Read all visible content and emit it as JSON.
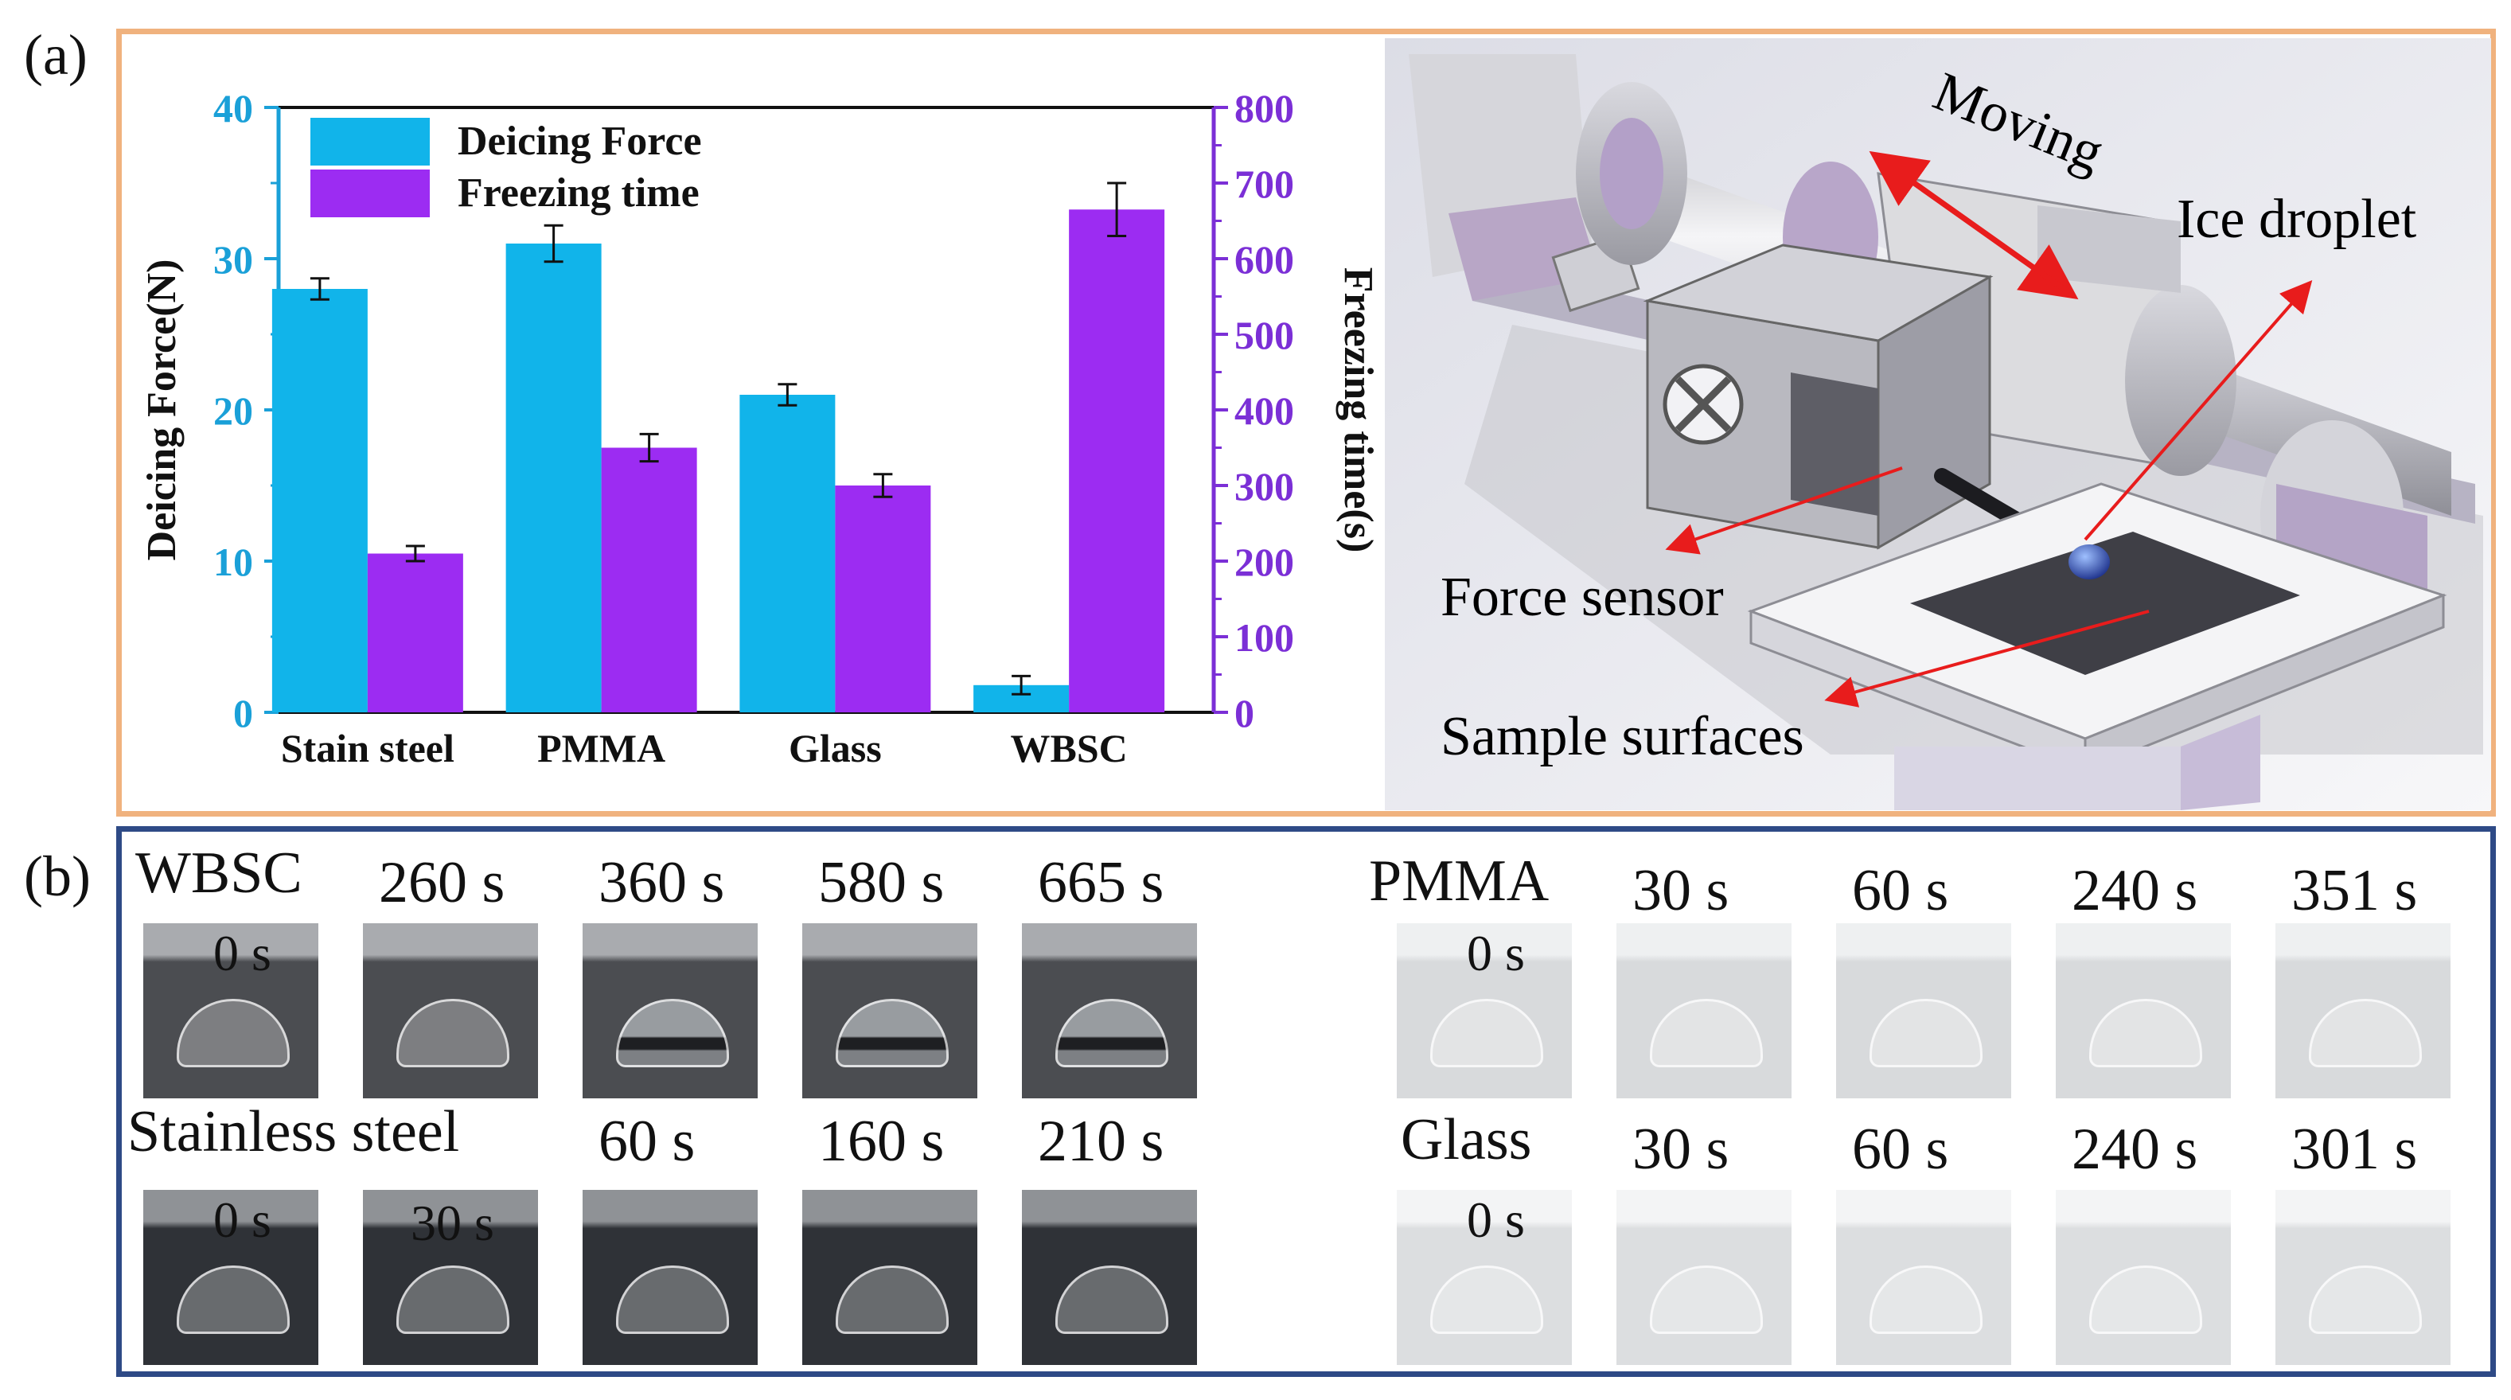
{
  "panel_a": {
    "label": "(a)",
    "chart_data": {
      "type": "bar",
      "categories": [
        "Stain steel",
        "PMMA",
        "Glass",
        "WBSC"
      ],
      "series": [
        {
          "name": "Deicing Force",
          "axis": "left",
          "color": "#11b4ea",
          "values": [
            28,
            31,
            21,
            1.8
          ],
          "errors": [
            0.7,
            1.2,
            0.7,
            0.6
          ]
        },
        {
          "name": "Freezing time",
          "axis": "right",
          "color": "#9c2cf2",
          "values": [
            210,
            350,
            300,
            665
          ],
          "errors": [
            10,
            18,
            15,
            35
          ]
        }
      ],
      "ylabel_left": "Deicing Force(N)",
      "ylabel_right": "Freezing time(s)",
      "ylim_left": [
        0,
        40
      ],
      "ylim_right": [
        0,
        800
      ],
      "yticks_left": [
        0,
        10,
        20,
        30,
        40
      ],
      "yticks_right": [
        0,
        100,
        200,
        300,
        400,
        500,
        600,
        700,
        800
      ],
      "legend_position": "top-left",
      "left_axis_color": "#1aa0d8",
      "right_axis_color": "#7b2fd6"
    },
    "diagram": {
      "moving_label": "Moving",
      "ice_label": "Ice droplet",
      "force_label": "Force sensor",
      "sample_label": "Sample surfaces",
      "arrow_color": "#e81c1c"
    }
  },
  "panel_b": {
    "label": "(b)",
    "groups": [
      {
        "name": "WBSC",
        "label_mode": "title",
        "frames": [
          "0 s",
          "260 s",
          "360 s",
          "580 s",
          "665 s"
        ]
      },
      {
        "name": "Stainless steel",
        "label_mode": "title",
        "frames": [
          "0 s",
          "30 s",
          "60 s",
          "160 s",
          "210 s"
        ]
      },
      {
        "name": "PMMA",
        "label_mode": "title",
        "frames": [
          "0 s",
          "30 s",
          "60 s",
          "240 s",
          "351 s"
        ]
      },
      {
        "name": "Glass",
        "label_mode": "title",
        "frames": [
          "0 s",
          "30 s",
          "60 s",
          "240 s",
          "301 s"
        ]
      }
    ]
  }
}
